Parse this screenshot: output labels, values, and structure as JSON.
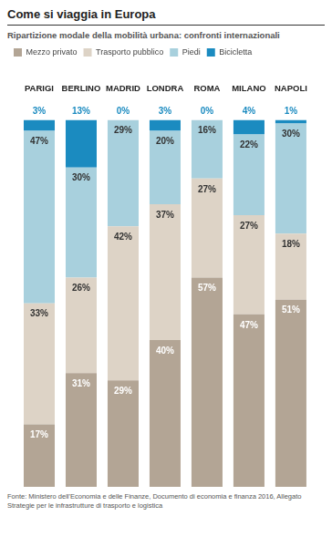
{
  "chart_data": {
    "type": "bar",
    "title": "Come si viaggia in Europa",
    "subtitle": "Ripartizione modale della mobilità urbana: confronti internazionali",
    "source": "Fonte: Ministero dell'Economia e delle Finanze, Documento di economia e finanza 2016, Allegato Strategie per le infrastrutture di trasporto e logistica",
    "categories": [
      "PARIGI",
      "BERLINO",
      "MADRID",
      "LONDRA",
      "ROMA",
      "MILANO",
      "NAPOLI"
    ],
    "series": [
      {
        "name": "Mezzo privato",
        "color": "#b3a595",
        "values": [
          17,
          31,
          29,
          40,
          57,
          47,
          51
        ],
        "value_labels": [
          "17%",
          "31%",
          "29%",
          "40%",
          "57%",
          "47%",
          "51%"
        ]
      },
      {
        "name": "Trasporto pubblico",
        "color": "#ddd3c6",
        "values": [
          33,
          26,
          42,
          37,
          27,
          27,
          18
        ],
        "value_labels": [
          "33%",
          "26%",
          "42%",
          "37%",
          "27%",
          "27%",
          "18%"
        ]
      },
      {
        "name": "Piedi",
        "color": "#a8d0dd",
        "values": [
          47,
          30,
          29,
          20,
          16,
          22,
          30
        ],
        "value_labels": [
          "47%",
          "30%",
          "29%",
          "20%",
          "16%",
          "22%",
          "30%"
        ]
      },
      {
        "name": "Bicicletta",
        "color": "#1b8bc0",
        "values": [
          3,
          13,
          0,
          3,
          0,
          4,
          1
        ],
        "value_labels": [
          "3%",
          "13%",
          "0%",
          "3%",
          "0%",
          "4%",
          "1%"
        ]
      }
    ],
    "stacked": true,
    "data_labels": true,
    "tick_labels": "x",
    "grid": false,
    "legend": "top",
    "ylim": [
      0,
      100
    ]
  }
}
